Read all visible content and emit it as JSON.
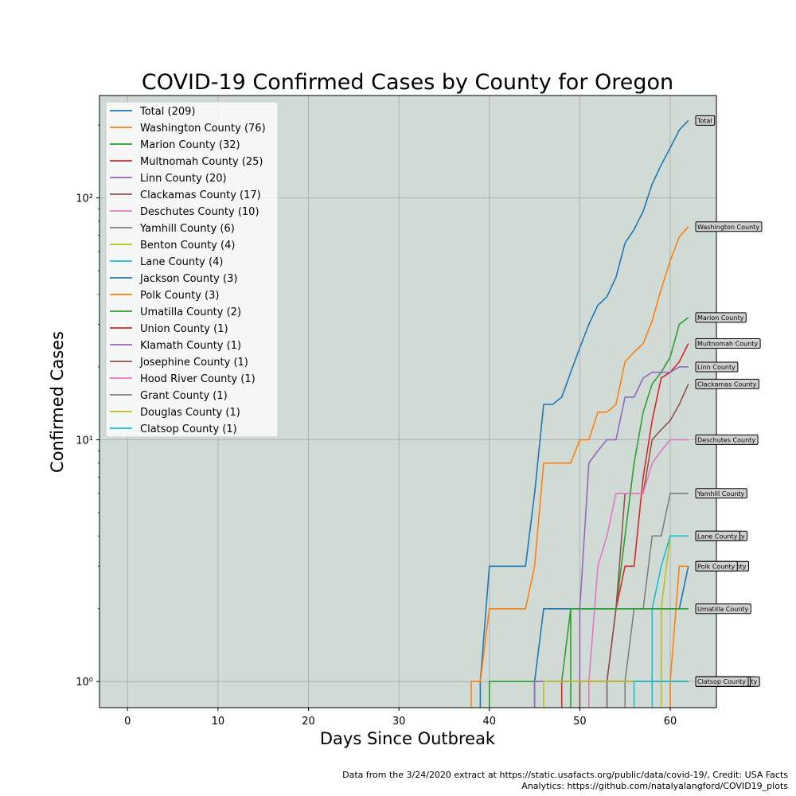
{
  "chart_data": {
    "type": "line",
    "title": "COVID-19 Confirmed Cases by County for Oregon",
    "xlabel": "Days Since Outbreak",
    "ylabel": "Confirmed Cases",
    "xlim": [
      -3.1,
      65.1
    ],
    "ylim": [
      0.78,
      265
    ],
    "yscale": "log",
    "grid": true,
    "legend_position": "upper-left",
    "x_ticks": [
      0,
      10,
      20,
      30,
      40,
      50,
      60
    ],
    "y_ticks": [
      {
        "value": 1,
        "label": "10⁰"
      },
      {
        "value": 10,
        "label": "10¹"
      },
      {
        "value": 100,
        "label": "10²"
      }
    ],
    "series": [
      {
        "name": "Total (209)",
        "end_label": "Total",
        "color": "#1f77b4",
        "points": [
          [
            39,
            1
          ],
          [
            40,
            3
          ],
          [
            44,
            3
          ],
          [
            45,
            6
          ],
          [
            46,
            14
          ],
          [
            47,
            14
          ],
          [
            48,
            15
          ],
          [
            49,
            19
          ],
          [
            50,
            24
          ],
          [
            51,
            30
          ],
          [
            52,
            36
          ],
          [
            53,
            39
          ],
          [
            54,
            47
          ],
          [
            55,
            65
          ],
          [
            56,
            74
          ],
          [
            57,
            88
          ],
          [
            58,
            114
          ],
          [
            59,
            137
          ],
          [
            60,
            161
          ],
          [
            61,
            191
          ],
          [
            62,
            209
          ]
        ]
      },
      {
        "name": "Washington County (76)",
        "end_label": "Washington County",
        "color": "#ff7f0e",
        "points": [
          [
            38,
            1
          ],
          [
            39,
            1
          ],
          [
            40,
            2
          ],
          [
            44,
            2
          ],
          [
            45,
            3
          ],
          [
            46,
            8
          ],
          [
            49,
            8
          ],
          [
            50,
            10
          ],
          [
            51,
            10
          ],
          [
            52,
            13
          ],
          [
            53,
            13
          ],
          [
            54,
            14
          ],
          [
            55,
            21
          ],
          [
            56,
            23
          ],
          [
            57,
            25
          ],
          [
            58,
            31
          ],
          [
            59,
            42
          ],
          [
            60,
            55
          ],
          [
            61,
            69
          ],
          [
            62,
            76
          ]
        ]
      },
      {
        "name": "Marion County (32)",
        "end_label": "Marion County",
        "color": "#2ca02c",
        "points": [
          [
            40,
            1
          ],
          [
            48,
            1
          ],
          [
            49,
            2
          ],
          [
            54,
            2
          ],
          [
            55,
            4
          ],
          [
            56,
            8
          ],
          [
            57,
            13
          ],
          [
            58,
            17
          ],
          [
            59,
            19
          ],
          [
            60,
            22
          ],
          [
            61,
            30
          ],
          [
            62,
            32
          ]
        ]
      },
      {
        "name": "Multnomah County (25)",
        "end_label": "Multnomah County",
        "color": "#d62728",
        "points": [
          [
            53,
            1
          ],
          [
            54,
            2
          ],
          [
            55,
            3
          ],
          [
            56,
            3
          ],
          [
            57,
            7
          ],
          [
            58,
            12
          ],
          [
            59,
            18
          ],
          [
            60,
            19
          ],
          [
            61,
            21
          ],
          [
            62,
            25
          ]
        ]
      },
      {
        "name": "Linn County (20)",
        "end_label": "Linn County",
        "color": "#9467bd",
        "points": [
          [
            50,
            2
          ],
          [
            51,
            8
          ],
          [
            52,
            9
          ],
          [
            53,
            10
          ],
          [
            54,
            10
          ],
          [
            55,
            15
          ],
          [
            56,
            15
          ],
          [
            57,
            18
          ],
          [
            58,
            19
          ],
          [
            60,
            19
          ],
          [
            61,
            20
          ],
          [
            62,
            20
          ]
        ]
      },
      {
        "name": "Clackamas County (17)",
        "end_label": "Clackamas County",
        "color": "#8c564b",
        "points": [
          [
            53,
            1
          ],
          [
            54,
            2
          ],
          [
            55,
            6
          ],
          [
            57,
            6
          ],
          [
            58,
            10
          ],
          [
            59,
            11
          ],
          [
            60,
            12
          ],
          [
            61,
            14
          ],
          [
            62,
            17
          ]
        ]
      },
      {
        "name": "Deschutes County (10)",
        "end_label": "Deschutes County",
        "color": "#e377c2",
        "points": [
          [
            51,
            1
          ],
          [
            52,
            3
          ],
          [
            53,
            4
          ],
          [
            54,
            6
          ],
          [
            57,
            6
          ],
          [
            58,
            8
          ],
          [
            59,
            9
          ],
          [
            60,
            10
          ],
          [
            62,
            10
          ]
        ]
      },
      {
        "name": "Yamhill County (6)",
        "end_label": "Yamhill County",
        "color": "#7f7f7f",
        "points": [
          [
            55,
            1
          ],
          [
            56,
            2
          ],
          [
            57,
            2
          ],
          [
            58,
            4
          ],
          [
            59,
            4
          ],
          [
            60,
            6
          ],
          [
            62,
            6
          ]
        ]
      },
      {
        "name": "Benton County (4)",
        "end_label": "Benton County",
        "color": "#bcbd22",
        "points": [
          [
            59,
            2
          ],
          [
            60,
            4
          ],
          [
            62,
            4
          ]
        ]
      },
      {
        "name": "Lane County (4)",
        "end_label": "Lane County",
        "color": "#17becf",
        "points": [
          [
            58,
            2
          ],
          [
            59,
            3
          ],
          [
            60,
            4
          ],
          [
            62,
            4
          ]
        ]
      },
      {
        "name": "Jackson County (3)",
        "end_label": "Jackson County",
        "color": "#1f77b4",
        "points": [
          [
            45,
            1
          ],
          [
            46,
            2
          ],
          [
            61,
            2
          ],
          [
            62,
            3
          ]
        ]
      },
      {
        "name": "Polk County (3)",
        "end_label": "Polk County",
        "color": "#ff7f0e",
        "points": [
          [
            60,
            1
          ],
          [
            61,
            3
          ],
          [
            62,
            3
          ]
        ]
      },
      {
        "name": "Umatilla County (2)",
        "end_label": "Umatilla County",
        "color": "#2ca02c",
        "points": [
          [
            49,
            2
          ],
          [
            62,
            2
          ]
        ]
      },
      {
        "name": "Union County (1)",
        "end_label": "Union County",
        "color": "#d62728",
        "points": [
          [
            48,
            1
          ],
          [
            62,
            1
          ]
        ]
      },
      {
        "name": "Klamath County (1)",
        "end_label": "Klamath County",
        "color": "#9467bd",
        "points": [
          [
            45,
            1
          ],
          [
            62,
            1
          ]
        ]
      },
      {
        "name": "Josephine County (1)",
        "end_label": "Josephine County",
        "color": "#8c564b",
        "points": [
          [
            50,
            1
          ],
          [
            62,
            1
          ]
        ]
      },
      {
        "name": "Hood River County (1)",
        "end_label": "Hood River County",
        "color": "#e377c2",
        "points": [
          [
            51,
            1
          ],
          [
            62,
            1
          ]
        ]
      },
      {
        "name": "Grant County (1)",
        "end_label": "Grant County",
        "color": "#7f7f7f",
        "points": [
          [
            53,
            1
          ],
          [
            62,
            1
          ]
        ]
      },
      {
        "name": "Douglas County (1)",
        "end_label": "Douglas County",
        "color": "#bcbd22",
        "points": [
          [
            46,
            1
          ],
          [
            62,
            1
          ]
        ]
      },
      {
        "name": "Clatsop County (1)",
        "end_label": "Clatsop County",
        "color": "#17becf",
        "points": [
          [
            56,
            1
          ],
          [
            62,
            1
          ]
        ]
      }
    ]
  },
  "credits": {
    "line1": "Data from the 3/24/2020 extract at https://static.usafacts.org/public/data/covid-19/, Credit: USA Facts",
    "line2": "Analytics: https://github.com/natalyalangford/COVID19_plots"
  }
}
